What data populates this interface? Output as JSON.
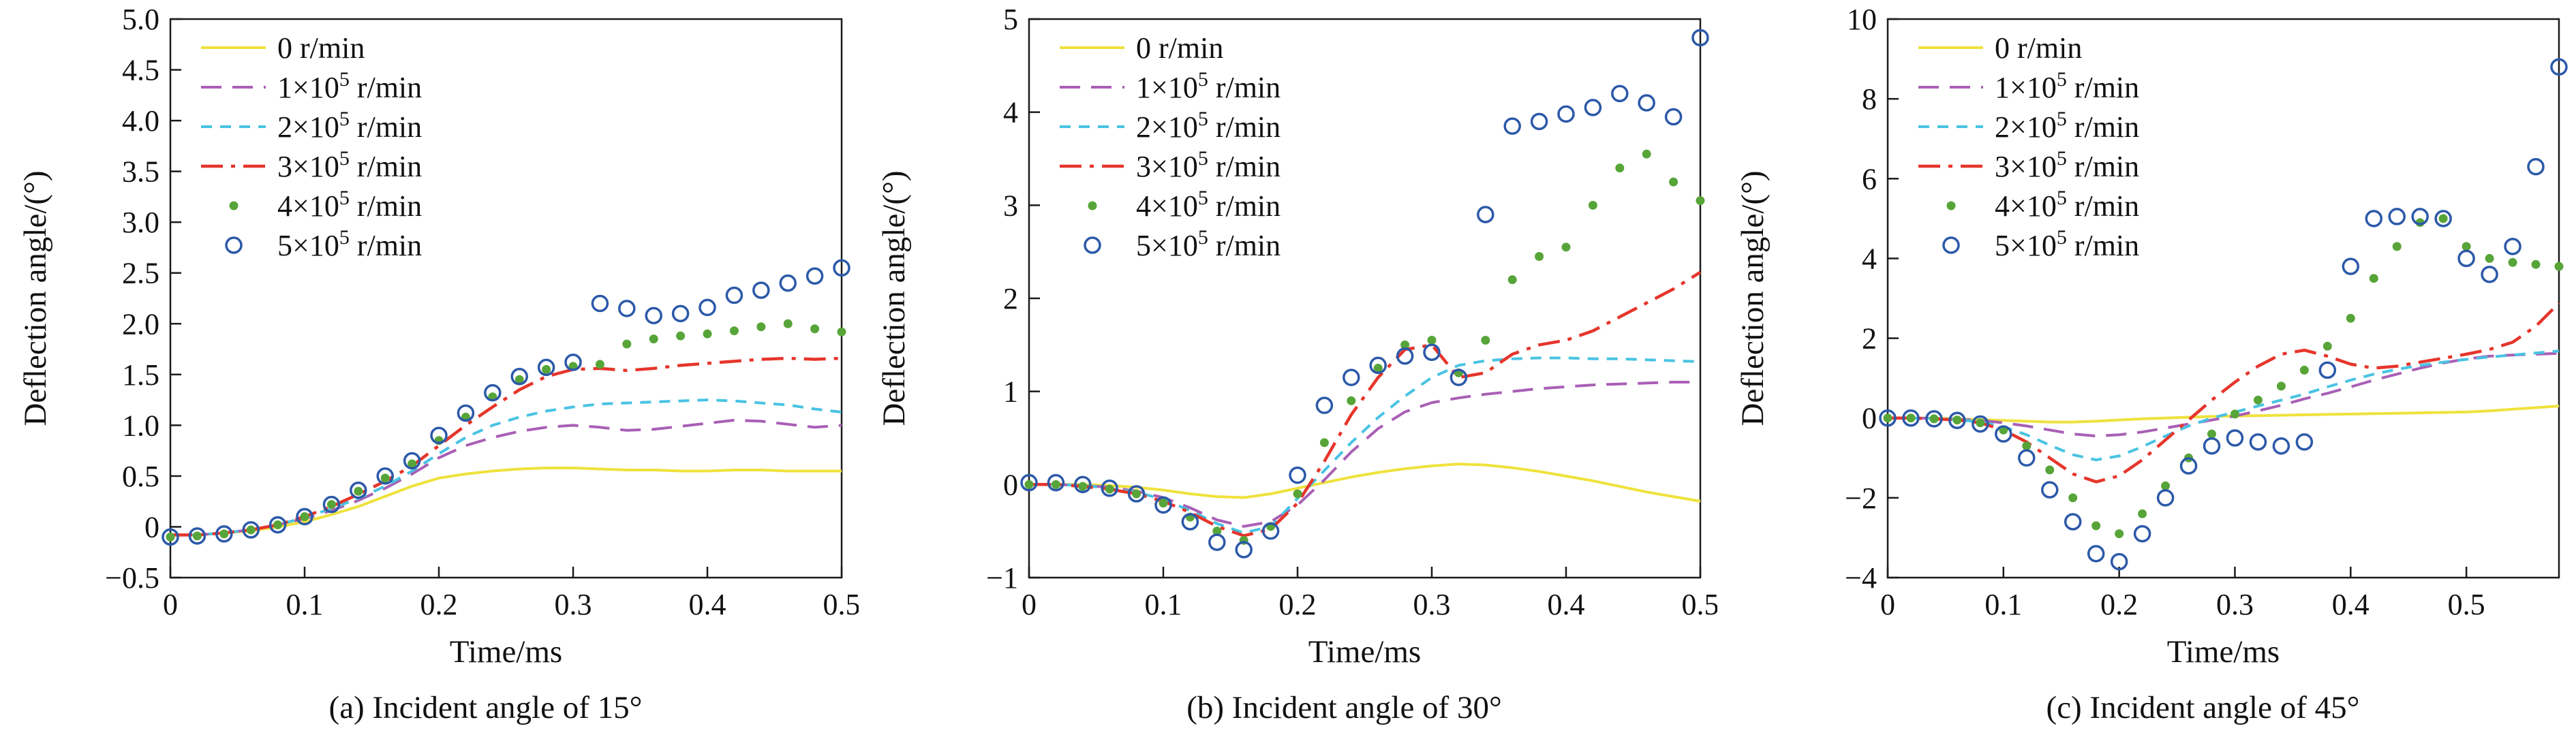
{
  "page": {
    "background": "#ffffff"
  },
  "chart_data": {
    "type": "line+scatter",
    "legend_position": "upper-left-inside",
    "frame": "full-box",
    "grid": "off",
    "series_defs": [
      {
        "key": "r0",
        "label_pre": "0 r/min",
        "label_sup": "",
        "label_post": "",
        "color": "#efe23d",
        "kind": "line",
        "style": "solid",
        "width": 4
      },
      {
        "key": "r1",
        "label_pre": "1×10",
        "label_sup": "5",
        "label_post": " r/min",
        "color": "#a95fb5",
        "kind": "line",
        "style": "dash-long",
        "width": 4
      },
      {
        "key": "r2",
        "label_pre": "2×10",
        "label_sup": "5",
        "label_post": " r/min",
        "color": "#49c3e3",
        "kind": "line",
        "style": "dash-short",
        "width": 4
      },
      {
        "key": "r3",
        "label_pre": "3×10",
        "label_sup": "5",
        "label_post": " r/min",
        "color": "#e6352b",
        "kind": "line",
        "style": "dash-dot",
        "width": 4.5
      },
      {
        "key": "r4",
        "label_pre": "4×10",
        "label_sup": "5",
        "label_post": " r/min",
        "color": "#57a539",
        "kind": "scatter",
        "marker": "dot"
      },
      {
        "key": "r5",
        "label_pre": "5×10",
        "label_sup": "5",
        "label_post": " r/min",
        "color": "#2c59a9",
        "kind": "scatter",
        "marker": "circle"
      }
    ],
    "charts": [
      {
        "caption": "(a) Incident angle of 15°",
        "xlabel": "Time/ms",
        "ylabel": "Deflection angle/(°)",
        "xlim": [
          0,
          0.5
        ],
        "ylim": [
          -0.5,
          5.0
        ],
        "xticks": [
          {
            "v": 0,
            "label": "0"
          },
          {
            "v": 0.1,
            "label": "0.1"
          },
          {
            "v": 0.2,
            "label": "0.2"
          },
          {
            "v": 0.3,
            "label": "0.3"
          },
          {
            "v": 0.4,
            "label": "0.4"
          },
          {
            "v": 0.5,
            "label": "0.5"
          }
        ],
        "yticks": [
          {
            "v": 5.0,
            "label": "5.0"
          },
          {
            "v": 4.5,
            "label": "4.5"
          },
          {
            "v": 4.0,
            "label": "4.0"
          },
          {
            "v": 3.5,
            "label": "3.5"
          },
          {
            "v": 3.0,
            "label": "3.0"
          },
          {
            "v": 2.5,
            "label": "2.5"
          },
          {
            "v": 2.0,
            "label": "2.0"
          },
          {
            "v": 1.5,
            "label": "1.5"
          },
          {
            "v": 1.0,
            "label": "1.0"
          },
          {
            "v": 0.5,
            "label": "0.5"
          },
          {
            "v": 0,
            "label": "0"
          },
          {
            "v": -0.5,
            "label": "−0.5"
          }
        ],
        "x": [
          0,
          0.02,
          0.04,
          0.06,
          0.08,
          0.1,
          0.12,
          0.14,
          0.16,
          0.18,
          0.2,
          0.22,
          0.24,
          0.26,
          0.28,
          0.3,
          0.32,
          0.34,
          0.36,
          0.38,
          0.4,
          0.42,
          0.44,
          0.46,
          0.48,
          0.5
        ],
        "series": {
          "r0": {
            "y": [
              -0.08,
              -0.08,
              -0.06,
              -0.04,
              0.0,
              0.05,
              0.12,
              0.2,
              0.3,
              0.4,
              0.48,
              0.52,
              0.55,
              0.57,
              0.58,
              0.58,
              0.57,
              0.56,
              0.56,
              0.55,
              0.55,
              0.56,
              0.56,
              0.55,
              0.55,
              0.55
            ]
          },
          "r1": {
            "y": [
              -0.08,
              -0.08,
              -0.06,
              -0.03,
              0.02,
              0.08,
              0.16,
              0.26,
              0.38,
              0.52,
              0.68,
              0.8,
              0.88,
              0.94,
              0.98,
              1.0,
              0.98,
              0.95,
              0.96,
              0.99,
              1.02,
              1.05,
              1.04,
              1.01,
              0.98,
              1.0
            ]
          },
          "r2": {
            "y": [
              -0.08,
              -0.08,
              -0.06,
              -0.03,
              0.02,
              0.09,
              0.18,
              0.28,
              0.4,
              0.55,
              0.72,
              0.88,
              1.0,
              1.08,
              1.14,
              1.18,
              1.21,
              1.22,
              1.23,
              1.24,
              1.25,
              1.24,
              1.22,
              1.2,
              1.16,
              1.13
            ]
          },
          "r3": {
            "y": [
              -0.08,
              -0.08,
              -0.06,
              -0.03,
              0.02,
              0.1,
              0.2,
              0.32,
              0.45,
              0.6,
              0.8,
              1.0,
              1.18,
              1.35,
              1.48,
              1.55,
              1.56,
              1.54,
              1.56,
              1.59,
              1.61,
              1.63,
              1.65,
              1.66,
              1.65,
              1.66
            ]
          },
          "r4": {
            "y": [
              -0.1,
              -0.09,
              -0.07,
              -0.03,
              0.02,
              0.1,
              0.22,
              0.35,
              0.48,
              0.62,
              0.85,
              1.08,
              1.28,
              1.45,
              1.55,
              1.58,
              1.6,
              1.8,
              1.85,
              1.88,
              1.9,
              1.93,
              1.97,
              2.0,
              1.95,
              1.92
            ]
          },
          "r5": {
            "y": [
              -0.1,
              -0.09,
              -0.07,
              -0.03,
              0.02,
              0.1,
              0.22,
              0.36,
              0.5,
              0.65,
              0.9,
              1.12,
              1.32,
              1.48,
              1.57,
              1.62,
              2.2,
              2.15,
              2.08,
              2.1,
              2.16,
              2.28,
              2.33,
              2.4,
              2.47,
              2.55
            ]
          }
        }
      },
      {
        "caption": "(b) Incident angle of 30°",
        "xlabel": "Time/ms",
        "ylabel": "Deflection angle/(°)",
        "xlim": [
          0,
          0.5
        ],
        "ylim": [
          -1,
          5
        ],
        "xticks": [
          {
            "v": 0,
            "label": "0"
          },
          {
            "v": 0.1,
            "label": "0.1"
          },
          {
            "v": 0.2,
            "label": "0.2"
          },
          {
            "v": 0.3,
            "label": "0.3"
          },
          {
            "v": 0.4,
            "label": "0.4"
          },
          {
            "v": 0.5,
            "label": "0.5"
          }
        ],
        "yticks": [
          {
            "v": 5,
            "label": "5"
          },
          {
            "v": 4,
            "label": "4"
          },
          {
            "v": 3,
            "label": "3"
          },
          {
            "v": 2,
            "label": "2"
          },
          {
            "v": 1,
            "label": "1"
          },
          {
            "v": 0,
            "label": "0"
          },
          {
            "v": -1,
            "label": "−1"
          }
        ],
        "x": [
          0,
          0.02,
          0.04,
          0.06,
          0.08,
          0.1,
          0.12,
          0.14,
          0.16,
          0.18,
          0.2,
          0.22,
          0.24,
          0.26,
          0.28,
          0.3,
          0.32,
          0.34,
          0.36,
          0.38,
          0.4,
          0.42,
          0.44,
          0.46,
          0.48,
          0.5
        ],
        "series": {
          "r0": {
            "y": [
              0.0,
              0.0,
              0.0,
              -0.01,
              -0.03,
              -0.06,
              -0.1,
              -0.13,
              -0.14,
              -0.1,
              -0.04,
              0.02,
              0.08,
              0.13,
              0.17,
              0.2,
              0.22,
              0.21,
              0.18,
              0.14,
              0.09,
              0.04,
              -0.02,
              -0.08,
              -0.13,
              -0.18
            ]
          },
          "r1": {
            "y": [
              0.0,
              0.0,
              -0.01,
              -0.03,
              -0.07,
              -0.14,
              -0.25,
              -0.38,
              -0.45,
              -0.4,
              -0.22,
              0.05,
              0.35,
              0.6,
              0.78,
              0.88,
              0.93,
              0.97,
              1.0,
              1.03,
              1.05,
              1.07,
              1.08,
              1.09,
              1.1,
              1.1
            ]
          },
          "r2": {
            "y": [
              0.0,
              0.0,
              -0.01,
              -0.04,
              -0.08,
              -0.16,
              -0.28,
              -0.42,
              -0.52,
              -0.45,
              -0.15,
              0.15,
              0.45,
              0.72,
              0.95,
              1.15,
              1.28,
              1.33,
              1.35,
              1.36,
              1.36,
              1.35,
              1.35,
              1.34,
              1.33,
              1.32
            ]
          },
          "r3": {
            "y": [
              0.0,
              0.0,
              -0.02,
              -0.05,
              -0.1,
              -0.18,
              -0.3,
              -0.45,
              -0.55,
              -0.48,
              -0.2,
              0.25,
              0.75,
              1.15,
              1.45,
              1.5,
              1.15,
              1.2,
              1.4,
              1.5,
              1.55,
              1.65,
              1.8,
              1.95,
              2.1,
              2.28
            ]
          },
          "r4": {
            "y": [
              0.0,
              0.0,
              -0.02,
              -0.05,
              -0.1,
              -0.2,
              -0.35,
              -0.5,
              -0.6,
              -0.45,
              -0.1,
              0.45,
              0.9,
              1.25,
              1.5,
              1.55,
              1.2,
              1.55,
              2.2,
              2.45,
              2.55,
              3.0,
              3.4,
              3.55,
              3.25,
              3.05
            ]
          },
          "r5": {
            "y": [
              0.02,
              0.02,
              0.0,
              -0.04,
              -0.1,
              -0.22,
              -0.4,
              -0.62,
              -0.7,
              -0.5,
              0.1,
              0.85,
              1.15,
              1.28,
              1.38,
              1.42,
              1.15,
              2.9,
              3.85,
              3.9,
              3.98,
              4.05,
              4.2,
              4.1,
              3.95,
              4.8
            ]
          }
        }
      },
      {
        "caption": "(c) Incident angle of 45°",
        "xlabel": "Time/ms",
        "ylabel": "Deflection angle/(°)",
        "xlim": [
          0,
          0.58
        ],
        "ylim": [
          -4,
          10
        ],
        "xticks": [
          {
            "v": 0,
            "label": "0"
          },
          {
            "v": 0.1,
            "label": "0.1"
          },
          {
            "v": 0.2,
            "label": "0.2"
          },
          {
            "v": 0.3,
            "label": "0.3"
          },
          {
            "v": 0.4,
            "label": "0.4"
          },
          {
            "v": 0.5,
            "label": "0.5"
          }
        ],
        "yticks": [
          {
            "v": 10,
            "label": "10"
          },
          {
            "v": 8,
            "label": "8"
          },
          {
            "v": 6,
            "label": "6"
          },
          {
            "v": 4,
            "label": "4"
          },
          {
            "v": 2,
            "label": "2"
          },
          {
            "v": 0,
            "label": "0"
          },
          {
            "v": -2,
            "label": "−2"
          },
          {
            "v": -4,
            "label": "−4"
          }
        ],
        "x": [
          0,
          0.02,
          0.04,
          0.06,
          0.08,
          0.1,
          0.12,
          0.14,
          0.16,
          0.18,
          0.2,
          0.22,
          0.24,
          0.26,
          0.28,
          0.3,
          0.32,
          0.34,
          0.36,
          0.38,
          0.4,
          0.42,
          0.44,
          0.46,
          0.48,
          0.5,
          0.52,
          0.54,
          0.56,
          0.58
        ],
        "series": {
          "r0": {
            "y": [
              0.0,
              0.0,
              0.0,
              -0.02,
              -0.04,
              -0.06,
              -0.08,
              -0.1,
              -0.1,
              -0.08,
              -0.05,
              -0.02,
              0.0,
              0.02,
              0.04,
              0.05,
              0.06,
              0.07,
              0.08,
              0.09,
              0.1,
              0.11,
              0.12,
              0.13,
              0.14,
              0.15,
              0.18,
              0.22,
              0.26,
              0.3
            ]
          },
          "r1": {
            "y": [
              0.0,
              0.0,
              -0.01,
              -0.03,
              -0.06,
              -0.12,
              -0.2,
              -0.3,
              -0.4,
              -0.45,
              -0.42,
              -0.35,
              -0.25,
              -0.15,
              -0.05,
              0.05,
              0.18,
              0.32,
              0.48,
              0.62,
              0.78,
              0.95,
              1.1,
              1.25,
              1.38,
              1.48,
              1.55,
              1.58,
              1.6,
              1.62
            ]
          },
          "r2": {
            "y": [
              0.0,
              0.0,
              -0.01,
              -0.04,
              -0.1,
              -0.22,
              -0.42,
              -0.68,
              -0.92,
              -1.05,
              -0.95,
              -0.72,
              -0.45,
              -0.2,
              0.0,
              0.15,
              0.3,
              0.45,
              0.6,
              0.78,
              0.95,
              1.1,
              1.22,
              1.32,
              1.4,
              1.47,
              1.53,
              1.58,
              1.63,
              1.68
            ]
          },
          "r3": {
            "y": [
              0.0,
              0.0,
              -0.02,
              -0.05,
              -0.12,
              -0.3,
              -0.6,
              -1.0,
              -1.4,
              -1.6,
              -1.45,
              -1.05,
              -0.55,
              -0.05,
              0.45,
              0.9,
              1.3,
              1.6,
              1.7,
              1.55,
              1.35,
              1.25,
              1.3,
              1.4,
              1.5,
              1.6,
              1.72,
              1.9,
              2.3,
              2.88
            ]
          },
          "r4": {
            "y": [
              0.0,
              0.0,
              -0.02,
              -0.05,
              -0.12,
              -0.3,
              -0.7,
              -1.3,
              -2.0,
              -2.7,
              -2.9,
              -2.4,
              -1.7,
              -1.0,
              -0.4,
              0.1,
              0.45,
              0.8,
              1.2,
              1.8,
              2.5,
              3.5,
              4.3,
              4.9,
              5.0,
              4.3,
              4.0,
              3.9,
              3.85,
              3.8
            ]
          },
          "r5": {
            "y": [
              0.0,
              0.0,
              -0.02,
              -0.06,
              -0.15,
              -0.4,
              -1.0,
              -1.8,
              -2.6,
              -3.4,
              -3.6,
              -2.9,
              -2.0,
              -1.2,
              -0.7,
              -0.5,
              -0.6,
              -0.7,
              -0.6,
              1.2,
              3.8,
              5.0,
              5.05,
              5.05,
              5.0,
              4.0,
              3.6,
              4.3,
              6.3,
              8.8
            ]
          }
        }
      }
    ]
  }
}
